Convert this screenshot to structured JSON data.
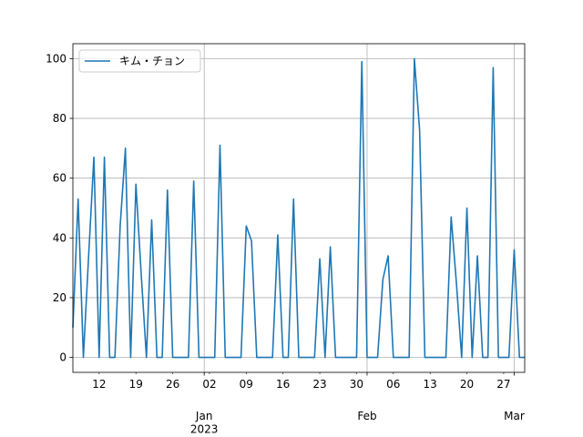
{
  "chart_data": {
    "type": "line",
    "x": [
      "2022-12-07",
      "2022-12-08",
      "2022-12-09",
      "2022-12-10",
      "2022-12-11",
      "2022-12-12",
      "2022-12-13",
      "2022-12-14",
      "2022-12-15",
      "2022-12-16",
      "2022-12-17",
      "2022-12-18",
      "2022-12-19",
      "2022-12-20",
      "2022-12-21",
      "2022-12-22",
      "2022-12-23",
      "2022-12-24",
      "2022-12-25",
      "2022-12-26",
      "2022-12-27",
      "2022-12-28",
      "2022-12-29",
      "2022-12-30",
      "2022-12-31",
      "2023-01-01",
      "2023-01-02",
      "2023-01-03",
      "2023-01-04",
      "2023-01-05",
      "2023-01-06",
      "2023-01-07",
      "2023-01-08",
      "2023-01-09",
      "2023-01-10",
      "2023-01-11",
      "2023-01-12",
      "2023-01-13",
      "2023-01-14",
      "2023-01-15",
      "2023-01-16",
      "2023-01-17",
      "2023-01-18",
      "2023-01-19",
      "2023-01-20",
      "2023-01-21",
      "2023-01-22",
      "2023-01-23",
      "2023-01-24",
      "2023-01-25",
      "2023-01-26",
      "2023-01-27",
      "2023-01-28",
      "2023-01-29",
      "2023-01-30",
      "2023-01-31",
      "2023-02-01",
      "2023-02-02",
      "2023-02-03",
      "2023-02-04",
      "2023-02-05",
      "2023-02-06",
      "2023-02-07",
      "2023-02-08",
      "2023-02-09",
      "2023-02-10",
      "2023-02-11",
      "2023-02-12",
      "2023-02-13",
      "2023-02-14",
      "2023-02-15",
      "2023-02-16",
      "2023-02-17",
      "2023-02-18",
      "2023-02-19",
      "2023-02-20",
      "2023-02-21",
      "2023-02-22",
      "2023-02-23",
      "2023-02-24",
      "2023-02-25",
      "2023-02-26",
      "2023-02-27",
      "2023-02-28",
      "2023-03-01",
      "2023-03-02",
      "2023-03-03"
    ],
    "series": [
      {
        "name": "キム・チョン",
        "color": "#1f77b4",
        "values": [
          10,
          53,
          0,
          34,
          67,
          0,
          67,
          0,
          0,
          44,
          70,
          0,
          58,
          28,
          0,
          46,
          0,
          0,
          56,
          0,
          0,
          0,
          0,
          59,
          0,
          0,
          0,
          0,
          71,
          0,
          0,
          0,
          0,
          44,
          39,
          0,
          0,
          0,
          0,
          41,
          0,
          0,
          53,
          0,
          0,
          0,
          0,
          33,
          0,
          37,
          0,
          0,
          0,
          0,
          0,
          99,
          0,
          0,
          0,
          26,
          34,
          0,
          0,
          0,
          0,
          100,
          76,
          0,
          0,
          0,
          0,
          0,
          47,
          25,
          0,
          50,
          0,
          34,
          0,
          0,
          97,
          0,
          0,
          0,
          36,
          0,
          0
        ]
      }
    ],
    "xlim": [
      "2022-12-07",
      "2023-03-03"
    ],
    "xticks": [
      {
        "value": "2022-12-12",
        "label": "12"
      },
      {
        "value": "2022-12-19",
        "label": "19"
      },
      {
        "value": "2022-12-26",
        "label": "26"
      },
      {
        "value": "2023-01-02",
        "label": "02"
      },
      {
        "value": "2023-01-09",
        "label": "09"
      },
      {
        "value": "2023-01-16",
        "label": "16"
      },
      {
        "value": "2023-01-23",
        "label": "23"
      },
      {
        "value": "2023-01-30",
        "label": "30"
      },
      {
        "value": "2023-02-06",
        "label": "06"
      },
      {
        "value": "2023-02-13",
        "label": "13"
      },
      {
        "value": "2023-02-20",
        "label": "20"
      },
      {
        "value": "2023-02-27",
        "label": "27"
      }
    ],
    "xticks_major": [
      {
        "value": "2023-01-01",
        "label": "Jan\n2023"
      },
      {
        "value": "2023-02-01",
        "label": "Feb"
      },
      {
        "value": "2023-03-01",
        "label": "Mar"
      }
    ],
    "ylim": [
      -5,
      105
    ],
    "yticks": [
      0,
      20,
      40,
      60,
      80,
      100
    ],
    "grid": true,
    "legend": "upper left"
  }
}
